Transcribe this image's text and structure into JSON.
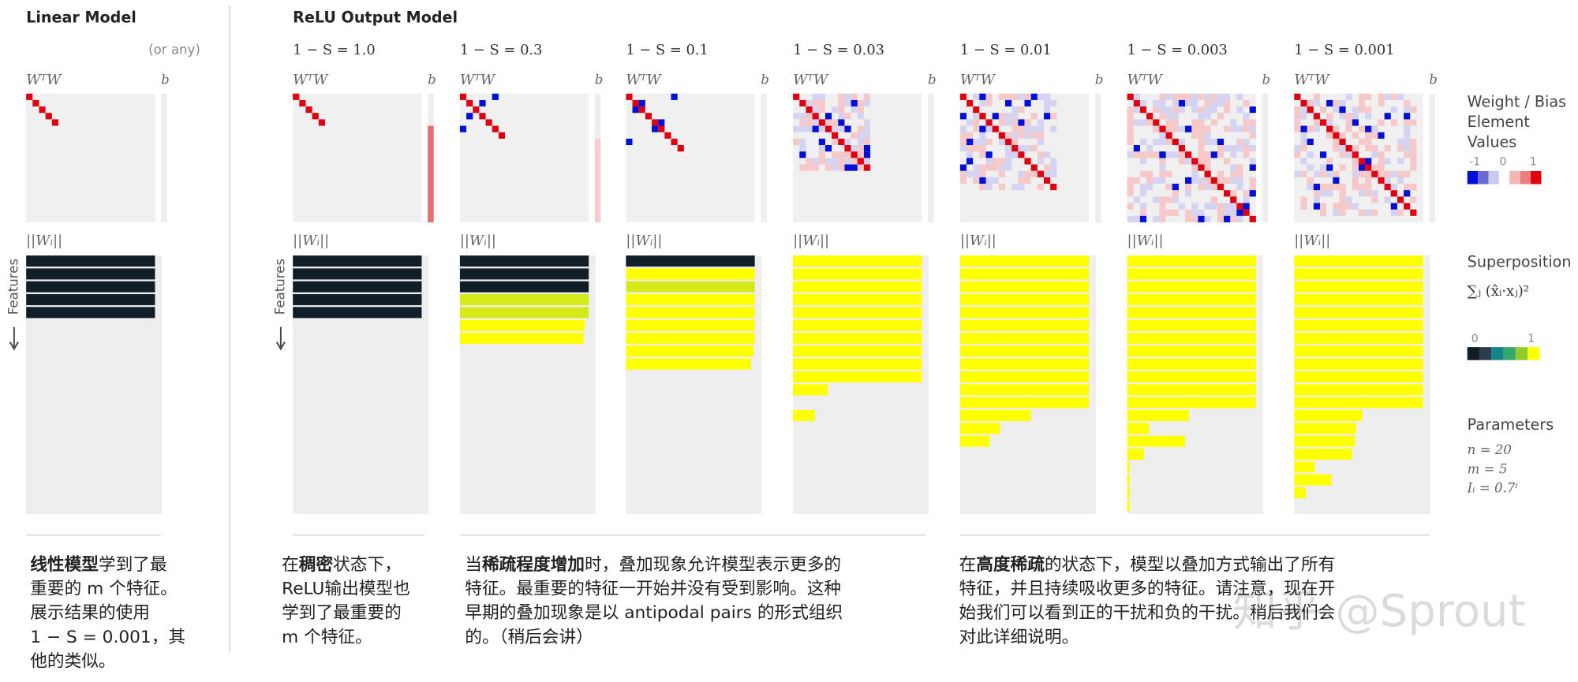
{
  "linear_model": {
    "title": "Linear Model",
    "note": "(or any)",
    "weights_label": "WᵀW",
    "bias_label": "b",
    "norm_label": "||Wᵢ||",
    "features_label": "Features",
    "norms": [
      1,
      1,
      1,
      1,
      1,
      0,
      0,
      0,
      0,
      0,
      0,
      0,
      0,
      0,
      0,
      0,
      0,
      0,
      0,
      0
    ],
    "bar_colors": [
      "#111d27",
      "#111d27",
      "#111d27",
      "#111d27",
      "#111d27",
      "#111d27",
      "#111d27",
      "#111d27",
      "#111d27",
      "#111d27",
      "#111d27",
      "#111d27",
      "#111d27",
      "#111d27",
      "#111d27",
      "#111d27",
      "#111d27",
      "#111d27",
      "#111d27",
      "#111d27"
    ]
  },
  "relu_model": {
    "title": "ReLU Output Model",
    "weights_label": "WᵀW",
    "bias_label": "b",
    "norm_label": "||Wᵢ||",
    "features_label": "Features",
    "panels": [
      {
        "title": "1 − S = 1.0",
        "norms": [
          1,
          1,
          1,
          1,
          1,
          0,
          0,
          0,
          0,
          0,
          0,
          0,
          0,
          0,
          0,
          0,
          0,
          0,
          0,
          0
        ],
        "bar_colors": [
          "#111d27",
          "#111d27",
          "#111d27",
          "#111d27",
          "#111d27",
          "#111d27",
          "#111d27",
          "#111d27",
          "#111d27",
          "#111d27",
          "#111d27",
          "#111d27",
          "#111d27",
          "#111d27",
          "#111d27",
          "#111d27",
          "#111d27",
          "#111d27",
          "#111d27",
          "#111d27"
        ]
      },
      {
        "title": "1 − S = 0.3",
        "norms": [
          1,
          1,
          1,
          1,
          1,
          0.97,
          0.96,
          0,
          0,
          0,
          0,
          0,
          0,
          0,
          0,
          0,
          0,
          0,
          0,
          0
        ],
        "bar_colors": [
          "#111d27",
          "#111d27",
          "#111d27",
          "#d6ea1a",
          "#d6ea1a",
          "#ffff00",
          "#ffff00",
          "#ffff00",
          "#ffff00",
          "#ffff00",
          "#ffff00",
          "#ffff00",
          "#ffff00",
          "#ffff00",
          "#ffff00",
          "#ffff00",
          "#ffff00",
          "#ffff00",
          "#ffff00",
          "#ffff00"
        ]
      },
      {
        "title": "1 − S = 0.1",
        "norms": [
          1,
          1,
          1,
          1,
          1,
          1,
          1,
          0.99,
          0.97,
          0,
          0,
          0,
          0,
          0,
          0,
          0,
          0,
          0,
          0,
          0
        ],
        "bar_colors": [
          "#111d27",
          "#ffff00",
          "#d6ea1a",
          "#ffff00",
          "#ffff00",
          "#ffff00",
          "#ffff00",
          "#ffff00",
          "#ffff00",
          "#ffff00",
          "#ffff00",
          "#ffff00",
          "#ffff00",
          "#ffff00",
          "#ffff00",
          "#ffff00",
          "#ffff00",
          "#ffff00",
          "#ffff00",
          "#ffff00"
        ]
      },
      {
        "title": "1 − S = 0.03",
        "norms": [
          1,
          1,
          1,
          1,
          1,
          1,
          1,
          1,
          1,
          1,
          0.27,
          0,
          0.17,
          0,
          0,
          0,
          0,
          0,
          0,
          0
        ],
        "bar_colors": [
          "#ffff00",
          "#ffff00",
          "#ffff00",
          "#ffff00",
          "#ffff00",
          "#ffff00",
          "#ffff00",
          "#ffff00",
          "#ffff00",
          "#ffff00",
          "#ffff00",
          "#ffff00",
          "#ffff00",
          "#ffff00",
          "#ffff00",
          "#ffff00",
          "#ffff00",
          "#ffff00",
          "#ffff00",
          "#ffff00"
        ]
      },
      {
        "title": "1 − S = 0.01",
        "norms": [
          1,
          1,
          1,
          1,
          1,
          1,
          1,
          1,
          1,
          1,
          1,
          1,
          0.55,
          0.31,
          0.23,
          0,
          0,
          0,
          0,
          0
        ],
        "bar_colors": [
          "#ffff00",
          "#ffff00",
          "#ffff00",
          "#ffff00",
          "#ffff00",
          "#ffff00",
          "#ffff00",
          "#ffff00",
          "#ffff00",
          "#ffff00",
          "#ffff00",
          "#ffff00",
          "#ffff00",
          "#ffff00",
          "#ffff00",
          "#ffff00",
          "#ffff00",
          "#ffff00",
          "#ffff00",
          "#ffff00"
        ]
      },
      {
        "title": "1 − S = 0.003",
        "norms": [
          1,
          1,
          1,
          1,
          1,
          1,
          1,
          1,
          1,
          1,
          1,
          1,
          0.48,
          0.17,
          0.45,
          0.13,
          0.02,
          0.02,
          0.02,
          0.02
        ],
        "bar_colors": [
          "#ffff00",
          "#ffff00",
          "#ffff00",
          "#ffff00",
          "#ffff00",
          "#ffff00",
          "#ffff00",
          "#ffff00",
          "#ffff00",
          "#ffff00",
          "#ffff00",
          "#ffff00",
          "#ffff00",
          "#ffff00",
          "#ffff00",
          "#ffff00",
          "#ffff00",
          "#ffff00",
          "#ffff00",
          "#ffff00"
        ]
      },
      {
        "title": "1 − S = 0.001",
        "norms": [
          1,
          1,
          1,
          1,
          1,
          1,
          1,
          1,
          1,
          1,
          1,
          1,
          0.53,
          0.48,
          0.47,
          0.45,
          0.16,
          0.29,
          0.09,
          0
        ],
        "bar_colors": [
          "#ffff00",
          "#ffff00",
          "#ffff00",
          "#ffff00",
          "#ffff00",
          "#ffff00",
          "#ffff00",
          "#ffff00",
          "#ffff00",
          "#ffff00",
          "#ffff00",
          "#ffff00",
          "#ffff00",
          "#ffff00",
          "#ffff00",
          "#ffff00",
          "#ffff00",
          "#ffff00",
          "#ffff00",
          "#ffff00"
        ]
      }
    ]
  },
  "legend": {
    "weights_title": [
      "Weight / Bias",
      "Element",
      "Values"
    ],
    "weights_ticks": [
      "-1",
      "0",
      "1"
    ],
    "weights_colors": [
      "#0010d8",
      "#6a6ad0",
      "#c8c8f0",
      "#ffffff",
      "#f2b4b4",
      "#ee7d7d",
      "#e00010"
    ],
    "superposition_title": "Superposition",
    "superposition_formula": "∑ⱼ (x̂ᵢ·xⱼ)²",
    "superposition_ticks": [
      "0",
      "1"
    ],
    "superposition_colors": [
      "#111d27",
      "#2a3e50",
      "#14868a",
      "#36a86a",
      "#8fcc2a",
      "#ffff00"
    ],
    "parameters_title": "Parameters",
    "parameters": [
      "n  =  20",
      "m  =  5",
      "Iᵢ  =  0.7ⁱ"
    ]
  },
  "captions": [
    {
      "lines": [
        [
          {
            "t": "线性模型",
            "b": true
          },
          {
            "t": "学到了最",
            "b": false
          }
        ],
        [
          {
            "t": "重要的 m 个特征。",
            "b": false
          }
        ],
        [
          {
            "t": "展示结果的使用",
            "b": false
          }
        ],
        [
          {
            "t": "1 − S = 0.001，其",
            "b": false
          }
        ],
        [
          {
            "t": "他的类似。",
            "b": false
          }
        ]
      ]
    },
    {
      "lines": [
        [
          {
            "t": "在",
            "b": false
          },
          {
            "t": "稠密",
            "b": true
          },
          {
            "t": "状态下，",
            "b": false
          }
        ],
        [
          {
            "t": "ReLU输出模型也",
            "b": false
          }
        ],
        [
          {
            "t": "学到了最重要的",
            "b": false
          }
        ],
        [
          {
            "t": "m 个特征。",
            "b": false
          }
        ]
      ]
    },
    {
      "lines": [
        [
          {
            "t": "当",
            "b": false
          },
          {
            "t": "稀疏程度增加",
            "b": true
          },
          {
            "t": "时，叠加现象允许模型表示更多的",
            "b": false
          }
        ],
        [
          {
            "t": "特征。最重要的特征一开始并没有受到影响。这种",
            "b": false
          }
        ],
        [
          {
            "t": "早期的叠加现象是以 antipodal pairs 的形式组织",
            "b": false
          }
        ],
        [
          {
            "t": "的。（稍后会讲）",
            "b": false
          }
        ]
      ]
    },
    {
      "lines": [
        [
          {
            "t": "在",
            "b": false
          },
          {
            "t": "高度稀疏",
            "b": true
          },
          {
            "t": "的状态下，模型以叠加方式输出了所有",
            "b": false
          }
        ],
        [
          {
            "t": "特征，并且持续吸收更多的特征。请注意，现在开",
            "b": false
          }
        ],
        [
          {
            "t": "始我们可以看到正的干扰和负的干扰。稍后我们会",
            "b": false
          }
        ],
        [
          {
            "t": "对此详细说明。",
            "b": false
          }
        ]
      ]
    }
  ],
  "watermark": "知乎 @Sprout"
}
